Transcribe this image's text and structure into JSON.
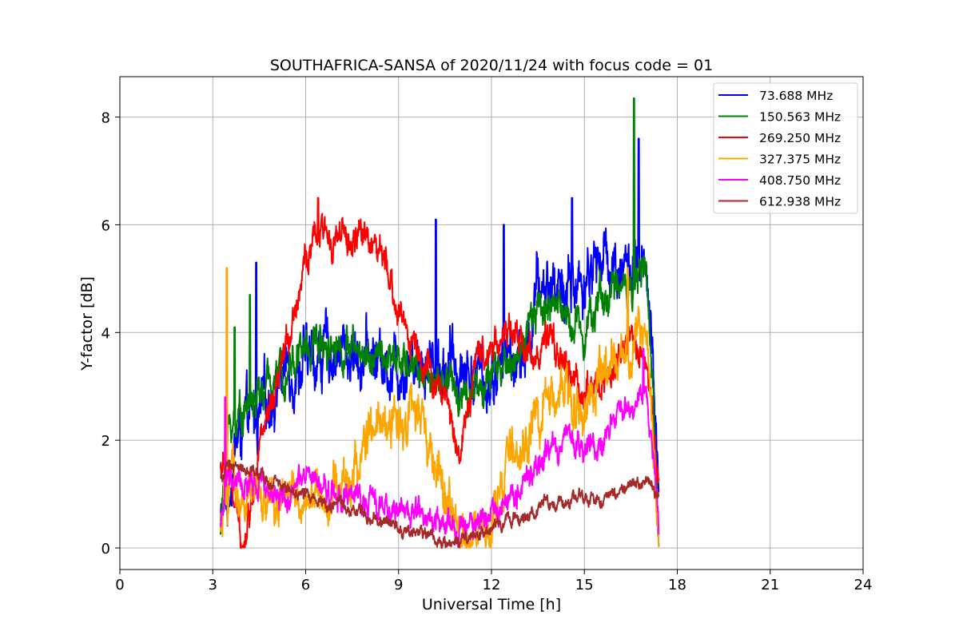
{
  "chart_data": {
    "type": "line",
    "title": "SOUTHAFRICA-SANSA of 2020/11/24 with focus code = 01",
    "xlabel": "Universal Time [h]",
    "ylabel": "Y-factor [dB]",
    "xlim": [
      0,
      24
    ],
    "ylim": [
      -0.4,
      8.75
    ],
    "xticks": [
      0,
      3,
      6,
      9,
      12,
      15,
      18,
      21,
      24
    ],
    "yticks": [
      0,
      2,
      4,
      6,
      8
    ],
    "grid": true,
    "legend_position": "top-right",
    "series": [
      {
        "name": " 73.688 MHz",
        "color": "#0000ff",
        "x": [
          3.25,
          3.5,
          3.75,
          4.0,
          4.5,
          5.0,
          5.5,
          6.0,
          6.5,
          7.0,
          7.5,
          8.0,
          8.5,
          9.0,
          9.5,
          10.0,
          10.5,
          11.0,
          11.5,
          12.0,
          12.5,
          13.0,
          13.5,
          14.0,
          14.5,
          15.0,
          15.5,
          16.0,
          16.5,
          17.0,
          17.4
        ],
        "y": [
          0.5,
          1.0,
          2.0,
          2.2,
          2.4,
          3.0,
          3.4,
          3.4,
          3.6,
          3.7,
          3.6,
          3.6,
          3.5,
          3.4,
          3.6,
          3.5,
          3.4,
          3.4,
          3.2,
          3.2,
          3.6,
          3.3,
          4.8,
          4.9,
          4.8,
          5.0,
          5.4,
          5.3,
          5.2,
          4.9,
          1.5
        ],
        "spikes": [
          [
            4.4,
            5.3
          ],
          [
            10.2,
            6.1
          ],
          [
            12.4,
            6.0
          ],
          [
            14.6,
            6.5
          ],
          [
            16.75,
            7.6
          ]
        ]
      },
      {
        "name": "150.563 MHz",
        "color": "#008000",
        "x": [
          3.25,
          3.5,
          3.75,
          4.0,
          4.5,
          5.0,
          5.5,
          6.0,
          6.5,
          7.0,
          7.5,
          8.0,
          8.5,
          9.0,
          9.5,
          10.0,
          10.5,
          11.0,
          11.5,
          12.0,
          12.5,
          13.0,
          13.5,
          14.0,
          14.5,
          15.0,
          15.5,
          16.0,
          16.5,
          17.0,
          17.4
        ],
        "y": [
          0.3,
          2.2,
          2.4,
          2.6,
          2.8,
          3.1,
          3.5,
          3.7,
          3.9,
          3.8,
          3.7,
          3.6,
          3.5,
          3.4,
          3.4,
          3.2,
          3.0,
          2.9,
          3.0,
          3.1,
          3.4,
          3.7,
          4.4,
          4.6,
          4.2,
          4.2,
          4.6,
          4.8,
          5.0,
          5.1,
          0.6
        ],
        "spikes": [
          [
            3.7,
            4.1
          ],
          [
            4.2,
            4.7
          ],
          [
            16.6,
            8.35
          ]
        ]
      },
      {
        "name": "269.250 MHz",
        "color": "#ff0000",
        "x": [
          3.25,
          3.5,
          3.75,
          4.0,
          4.25,
          4.5,
          5.0,
          5.5,
          6.0,
          6.5,
          7.0,
          7.5,
          8.0,
          8.5,
          9.0,
          9.5,
          10.0,
          10.5,
          11.0,
          11.5,
          12.0,
          12.5,
          13.0,
          13.5,
          14.0,
          14.5,
          15.0,
          15.5,
          16.0,
          16.5,
          17.0,
          17.4
        ],
        "y": [
          1.5,
          1.5,
          0.6,
          0.1,
          0.9,
          2.0,
          2.6,
          4.1,
          5.4,
          5.8,
          5.8,
          5.6,
          5.9,
          5.3,
          4.4,
          3.8,
          3.2,
          2.8,
          1.8,
          3.4,
          3.8,
          4.0,
          3.8,
          3.6,
          3.8,
          3.2,
          2.9,
          3.0,
          3.4,
          3.8,
          3.6,
          1.2
        ],
        "spikes": [
          [
            6.4,
            6.5
          ]
        ]
      },
      {
        "name": "327.375 MHz",
        "color": "#ffa500",
        "x": [
          3.25,
          3.4,
          3.6,
          4.0,
          4.5,
          5.0,
          5.5,
          6.0,
          6.5,
          7.0,
          7.5,
          8.0,
          8.5,
          9.0,
          9.5,
          10.0,
          10.5,
          11.0,
          11.5,
          12.0,
          12.5,
          13.0,
          13.5,
          14.0,
          14.5,
          15.0,
          15.5,
          16.0,
          16.5,
          17.0,
          17.4
        ],
        "y": [
          0.3,
          0.6,
          1.2,
          0.8,
          0.9,
          0.8,
          0.9,
          0.9,
          1.0,
          1.1,
          1.3,
          2.0,
          2.2,
          2.4,
          2.6,
          1.8,
          0.8,
          0.4,
          0.2,
          0.3,
          1.5,
          2.0,
          2.3,
          2.8,
          3.0,
          2.6,
          3.0,
          3.3,
          3.7,
          4.0,
          0.2
        ],
        "spikes": [
          [
            3.45,
            5.2
          ],
          [
            16.4,
            5.2
          ]
        ]
      },
      {
        "name": "408.750 MHz",
        "color": "#ff00ff",
        "x": [
          3.25,
          3.5,
          4.0,
          4.5,
          5.0,
          5.5,
          6.0,
          6.5,
          7.0,
          7.5,
          8.0,
          8.5,
          9.0,
          9.5,
          10.0,
          10.5,
          11.0,
          11.5,
          12.0,
          12.5,
          13.0,
          13.5,
          14.0,
          14.5,
          15.0,
          15.5,
          16.0,
          16.5,
          17.0,
          17.4
        ],
        "y": [
          0.5,
          1.3,
          1.1,
          1.2,
          1.0,
          1.0,
          1.3,
          1.1,
          1.0,
          0.9,
          0.9,
          0.8,
          0.7,
          0.7,
          0.6,
          0.4,
          0.3,
          0.5,
          0.6,
          1.0,
          1.2,
          1.5,
          1.9,
          2.1,
          1.8,
          2.0,
          2.3,
          2.8,
          3.1,
          0.4
        ],
        "spikes": [
          [
            3.4,
            2.8
          ],
          [
            16.9,
            3.7
          ]
        ]
      },
      {
        "name": "612.938 MHz",
        "color": "#a52a2a",
        "x": [
          3.25,
          3.5,
          4.0,
          4.5,
          5.0,
          5.5,
          6.0,
          6.5,
          7.0,
          7.5,
          8.0,
          8.5,
          9.0,
          9.5,
          10.0,
          10.5,
          11.0,
          11.5,
          12.0,
          12.5,
          13.0,
          13.5,
          14.0,
          14.5,
          15.0,
          15.5,
          16.0,
          16.5,
          17.0,
          17.4
        ],
        "y": [
          1.3,
          1.5,
          1.5,
          1.3,
          1.2,
          1.1,
          1.0,
          0.9,
          0.8,
          0.7,
          0.6,
          0.5,
          0.4,
          0.3,
          0.25,
          0.15,
          0.1,
          0.15,
          0.3,
          0.5,
          0.6,
          0.7,
          0.8,
          0.9,
          0.9,
          0.9,
          1.0,
          1.2,
          1.2,
          1.0
        ],
        "spikes": []
      }
    ]
  }
}
